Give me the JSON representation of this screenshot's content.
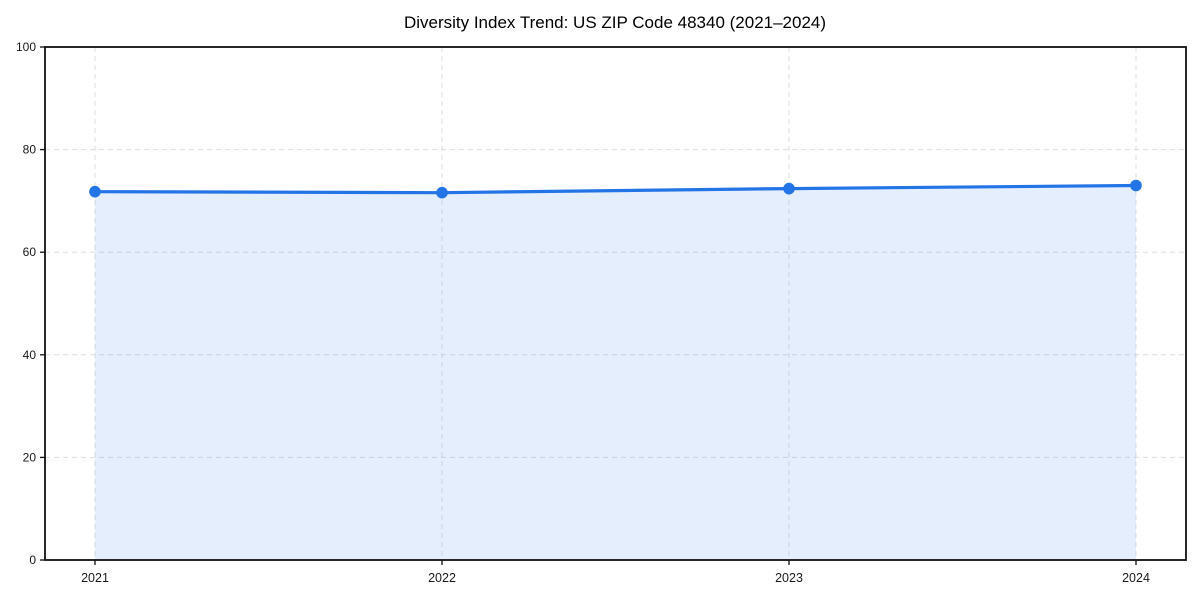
{
  "chart_data": {
    "type": "area",
    "title": "Diversity Index Trend: US ZIP Code 48340 (2021–2024)",
    "categories": [
      "2021",
      "2022",
      "2023",
      "2024"
    ],
    "series": [
      {
        "name": "Diversity Index",
        "values": [
          71.8,
          71.6,
          72.4,
          73.0
        ]
      }
    ],
    "xlabel": "",
    "ylabel": "",
    "ylim": [
      0,
      100
    ],
    "yticks": [
      0,
      20,
      40,
      60,
      80,
      100
    ],
    "grid": "dashed horizontal and vertical",
    "legend": false,
    "marker": "circle",
    "colors": {
      "line": "#2374e6",
      "marker": "#2374e6",
      "fill": "#2374e6",
      "fill_opacity": 0.12,
      "gridline": "#dedede",
      "spine": "#111111",
      "tick_label": "#1a1a1a",
      "title": "#000000",
      "background": "#ffffff"
    }
  }
}
